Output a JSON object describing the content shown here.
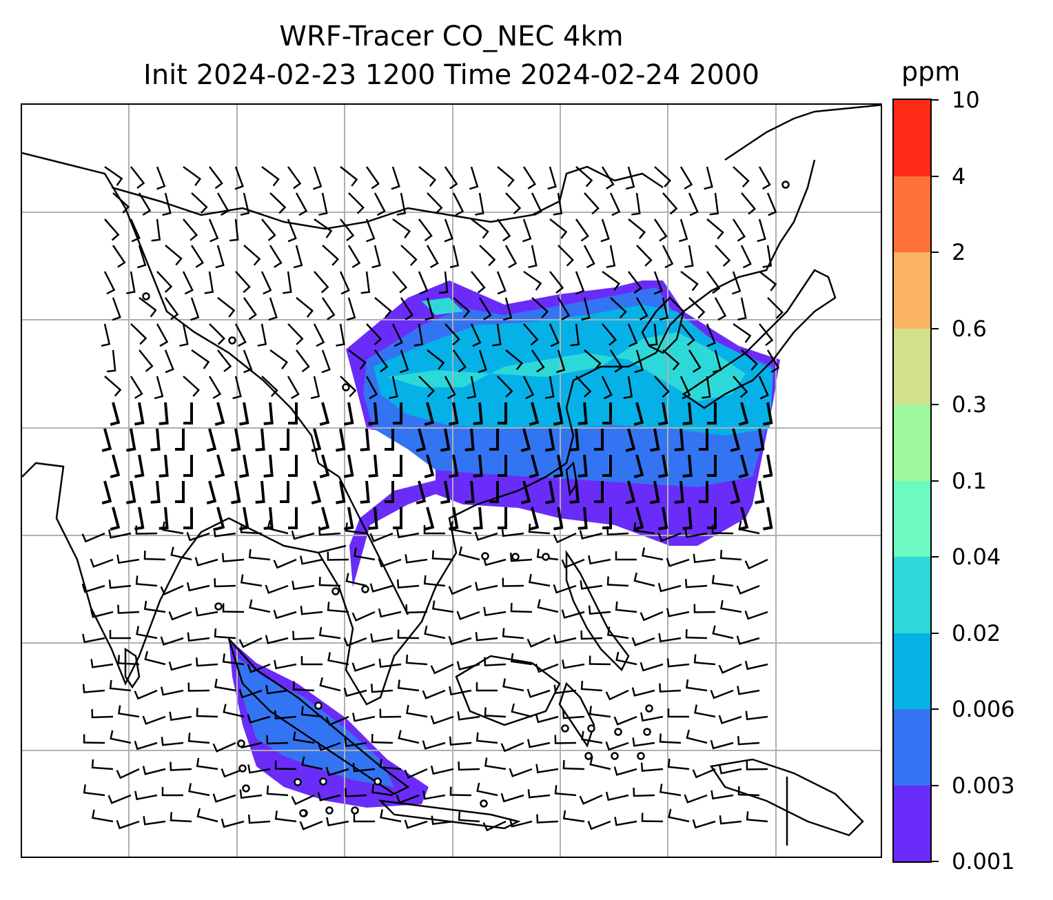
{
  "title": {
    "line1": "WRF-Tracer CO_NEC 4km",
    "line2": "Init 2024-02-23 1200 Time 2024-02-24 2000"
  },
  "colorbar": {
    "unit": "ppm",
    "levels": [
      "0.001",
      "0.003",
      "0.006",
      "0.02",
      "0.04",
      "0.1",
      "0.3",
      "0.6",
      "2",
      "4",
      "10"
    ],
    "colors": [
      "#6a2cf8",
      "#3374f2",
      "#06b1e8",
      "#2dd8d8",
      "#6cfac0",
      "#9cf89b",
      "#d1e08b",
      "#fbb263",
      "#fd7339",
      "#ff2b17"
    ]
  },
  "map": {
    "concentration_colors": {
      "lowest": "#6a2cf8",
      "low": "#3374f2",
      "mid": "#06b1e8",
      "high": "#2dd8d8"
    },
    "gridline_color": "#b0b0b0",
    "coastline_color": "#000000",
    "wind_barbs": true,
    "calm_wind_circles": true
  }
}
